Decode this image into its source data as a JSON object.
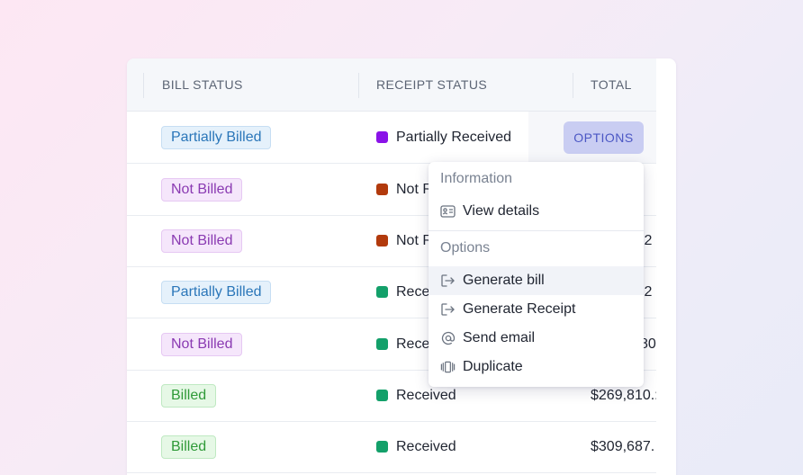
{
  "table": {
    "headers": {
      "bill_status": "BILL STATUS",
      "receipt_status": "RECEIPT STATUS",
      "total": "TOTAL"
    },
    "rows": [
      {
        "bill": "Partially Billed",
        "bill_kind": "partial",
        "receipt": "Partially Received",
        "receipt_color": "#8a12e8",
        "total": ""
      },
      {
        "bill": "Not Billed",
        "bill_kind": "notbilled",
        "receipt": "Not R",
        "receipt_color": "#b23a0c",
        "total": ""
      },
      {
        "bill": "Not Billed",
        "bill_kind": "notbilled",
        "receipt": "Not R",
        "receipt_color": "#b23a0c",
        "total": ".2"
      },
      {
        "bill": "Partially Billed",
        "bill_kind": "partial",
        "receipt": "Rece",
        "receipt_color": "#13a06a",
        "total": ".2"
      },
      {
        "bill": "Not Billed",
        "bill_kind": "notbilled",
        "receipt": "Rece",
        "receipt_color": "#13a06a",
        "total": "80"
      },
      {
        "bill": "Billed",
        "bill_kind": "billed",
        "receipt": "Received",
        "receipt_color": "#13a06a",
        "total": "$269,810.:"
      },
      {
        "bill": "Billed",
        "bill_kind": "billed",
        "receipt": "Received",
        "receipt_color": "#13a06a",
        "total": "$309,687."
      }
    ]
  },
  "options_button": {
    "label": "OPTIONS"
  },
  "menu": {
    "section_information": "Information",
    "section_options": "Options",
    "items": [
      {
        "label": "View details",
        "icon": "id-card-icon"
      },
      {
        "label": "Generate bill",
        "icon": "export-icon"
      },
      {
        "label": "Generate Receipt",
        "icon": "export-icon"
      },
      {
        "label": "Send email",
        "icon": "at-sign-icon"
      },
      {
        "label": "Duplicate",
        "icon": "duplicate-icon"
      }
    ]
  }
}
